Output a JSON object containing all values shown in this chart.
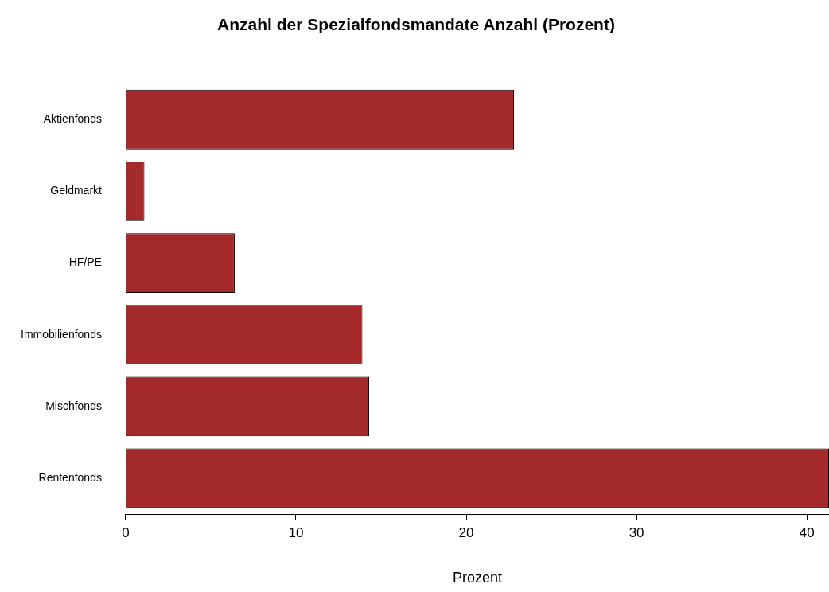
{
  "chart_data": {
    "type": "bar",
    "orientation": "horizontal",
    "title": "Anzahl der Spezialfondsmandate Anzahl (Prozent)",
    "xlabel": "Prozent",
    "categories": [
      "Aktienfonds",
      "Geldmarkt",
      "HF/PE",
      "Immobilienfonds",
      "Mischfonds",
      "Rentenfonds"
    ],
    "values": [
      22.8,
      1.1,
      6.4,
      13.9,
      14.3,
      41.3
    ],
    "color": "#a52a2a",
    "xlim": [
      0,
      41.3
    ],
    "xticks": [
      0,
      10,
      20,
      30,
      40
    ],
    "grid": false,
    "legend": false
  }
}
